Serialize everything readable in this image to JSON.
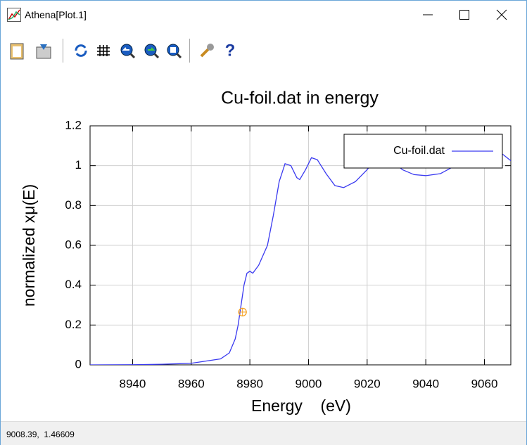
{
  "window": {
    "title": "Athena[Plot.1]"
  },
  "status": "9008.39,  1.46609",
  "chart_data": {
    "type": "line",
    "title": "Cu-foil.dat in energy",
    "xlabel": "Energy    (eV)",
    "ylabel": "normalized xμ(E)",
    "xlim": [
      8925.5,
      9069
    ],
    "xticks": [
      8940,
      8960,
      8980,
      9000,
      9020,
      9040,
      9060
    ],
    "ylim": [
      0,
      1.2
    ],
    "yticks": [
      0,
      0.2,
      0.4,
      0.6,
      0.8,
      1,
      1.2
    ],
    "grid": true,
    "legend": "upper right",
    "x": [
      8925.5,
      8940,
      8950,
      8960,
      8970,
      8973,
      8975,
      8976,
      8977,
      8978,
      8979,
      8980,
      8981,
      8983,
      8986,
      8988,
      8990,
      8992,
      8994,
      8996,
      8997,
      8999,
      9001,
      9003,
      9006,
      9009,
      9012,
      9016,
      9020,
      9024,
      9028,
      9032,
      9036,
      9040,
      9045,
      9050,
      9055,
      9060,
      9063,
      9066,
      9069
    ],
    "series": [
      {
        "name": "Cu-foil.dat",
        "color": "#3a3af0",
        "values": [
          0,
          0.001,
          0.003,
          0.008,
          0.03,
          0.06,
          0.13,
          0.2,
          0.3,
          0.4,
          0.46,
          0.47,
          0.46,
          0.5,
          0.6,
          0.75,
          0.92,
          1.01,
          1.0,
          0.94,
          0.93,
          0.98,
          1.04,
          1.03,
          0.96,
          0.9,
          0.89,
          0.92,
          0.98,
          1.05,
          1.03,
          0.98,
          0.955,
          0.95,
          0.96,
          1.0,
          1.03,
          1.065,
          1.075,
          1.06,
          1.025
        ]
      }
    ],
    "marker": {
      "x": 8977.5,
      "y": 0.265,
      "color": "#f5a020"
    }
  }
}
